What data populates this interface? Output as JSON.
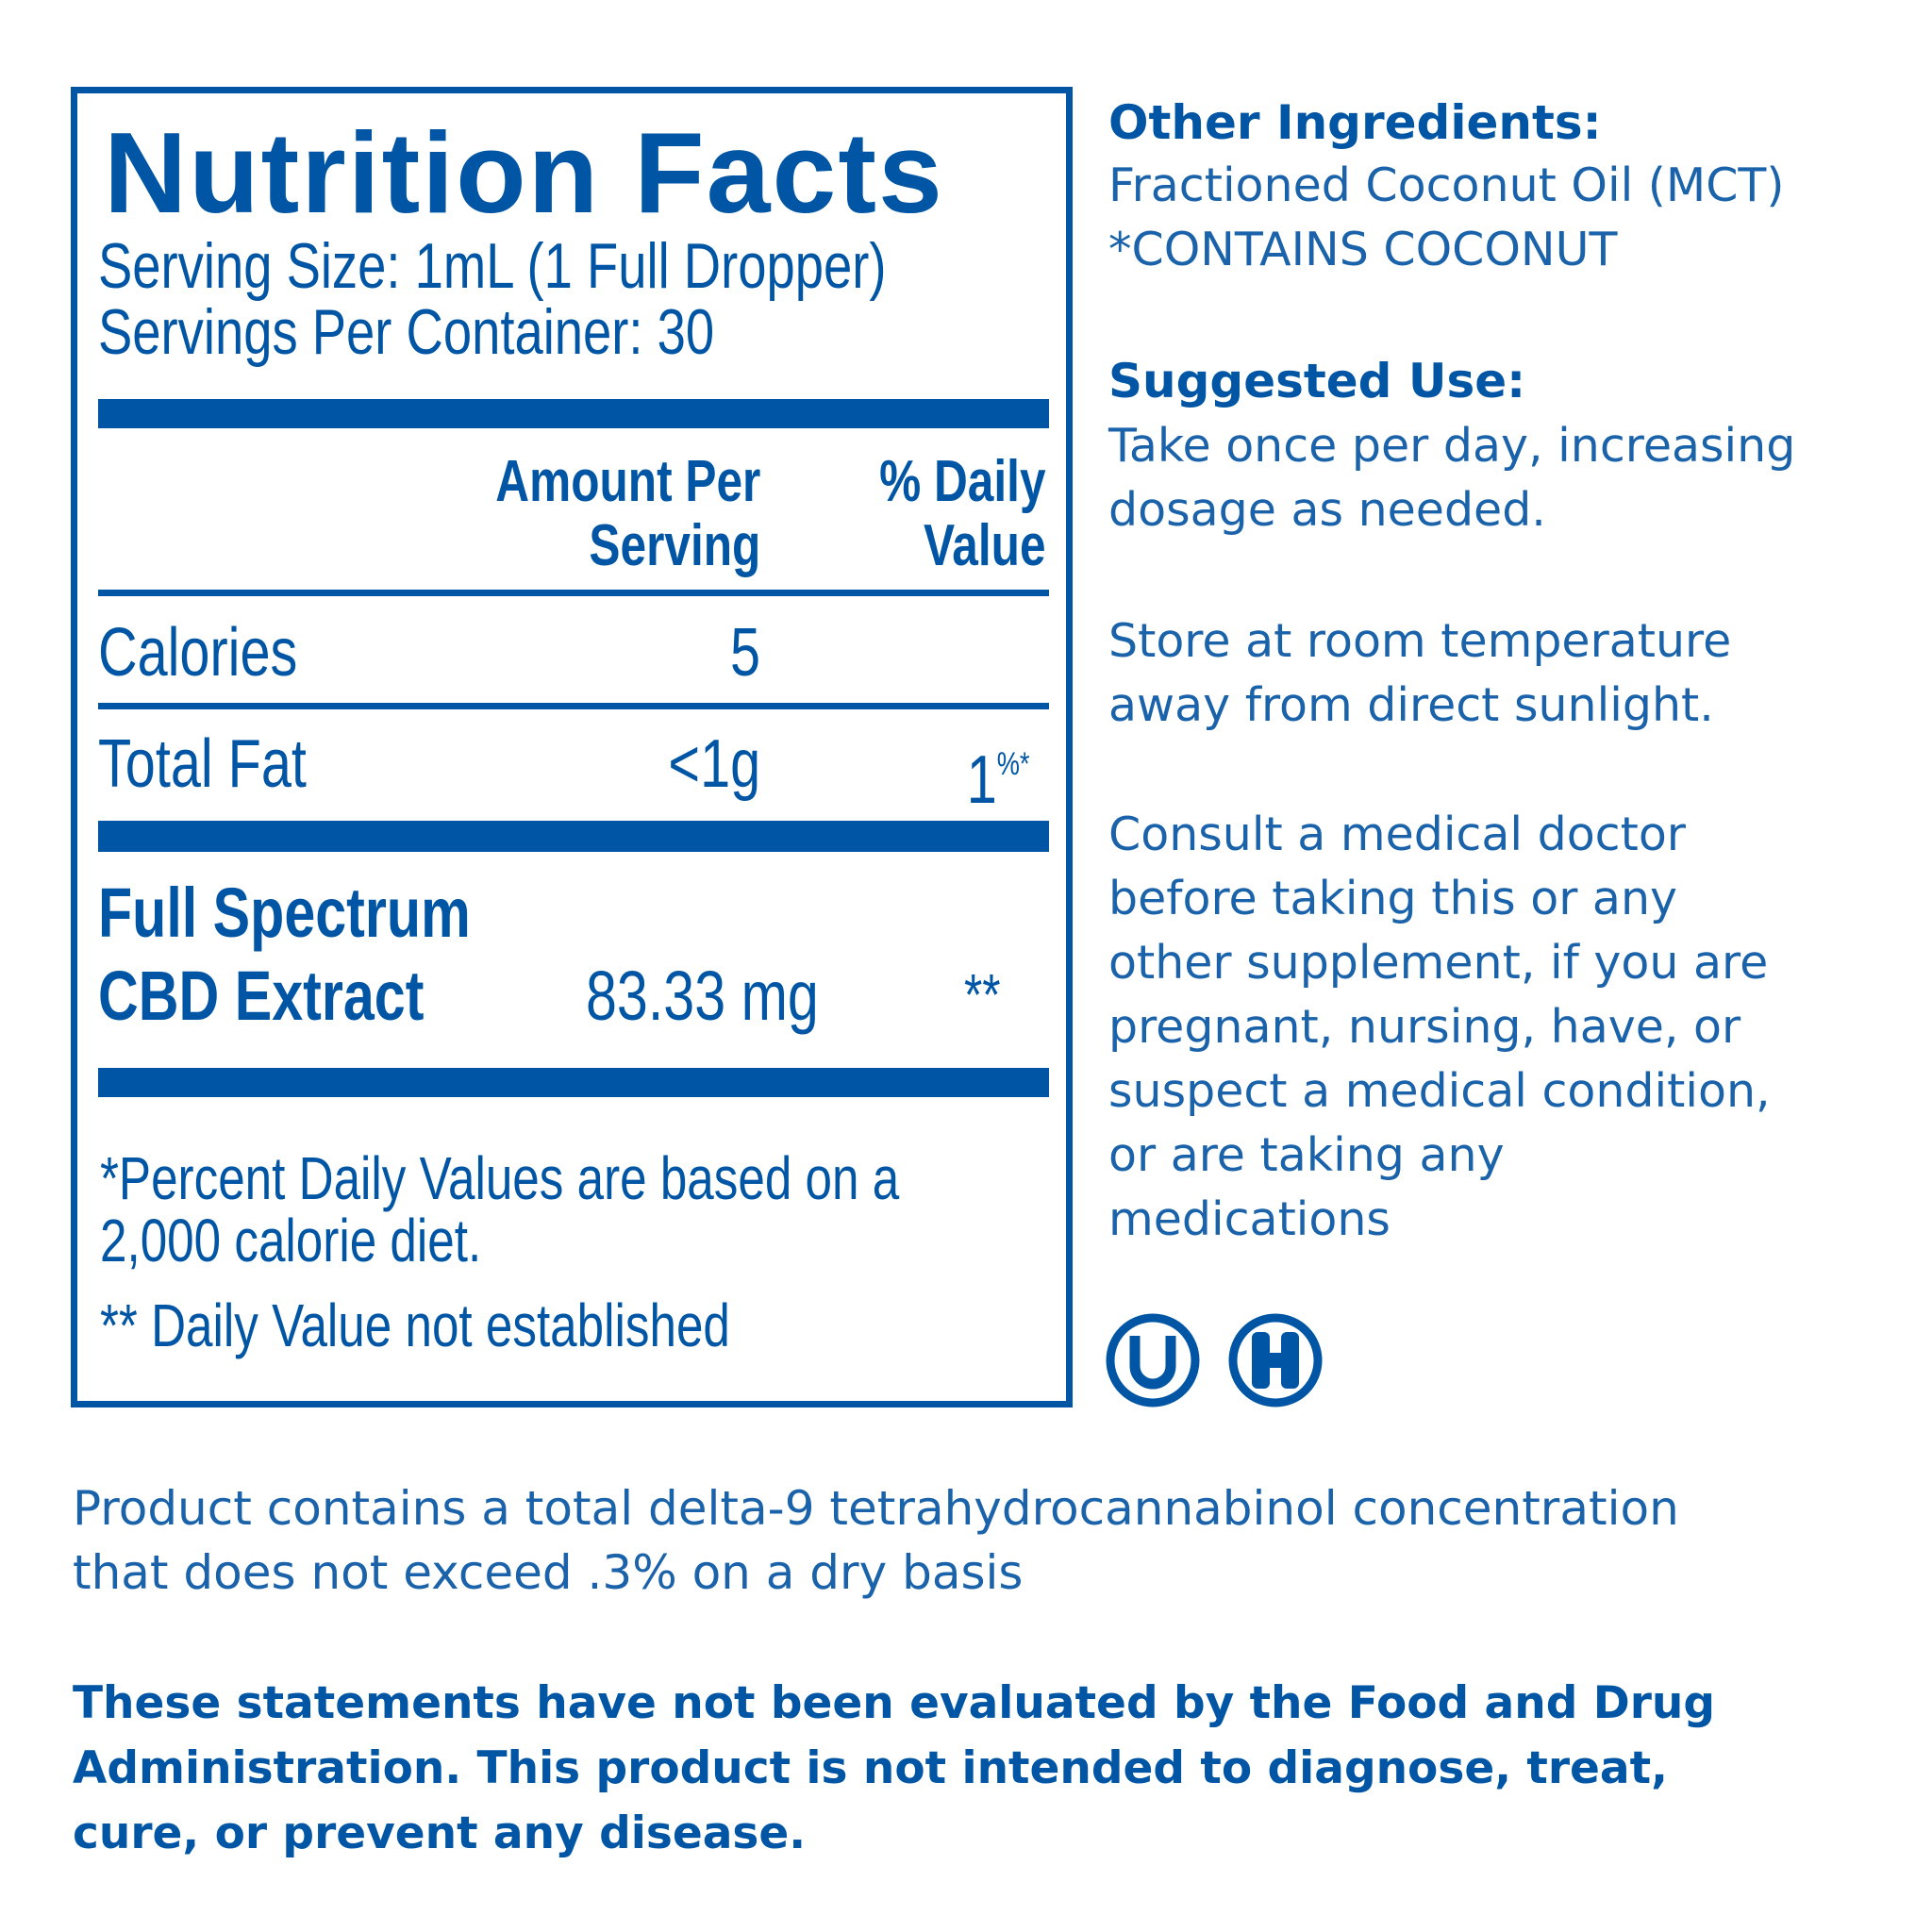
{
  "panel": {
    "title": "Nutrition Facts",
    "serving_size": "Serving Size: 1mL (1 Full Dropper)",
    "servings_per_container": "Servings Per Container: 30",
    "header": {
      "amount_line1": "Amount Per",
      "amount_line2": "Serving",
      "dv_line1": "% Daily",
      "dv_line2": "Value"
    },
    "rows": [
      {
        "label": "Calories",
        "amount": "5",
        "dv": ""
      },
      {
        "label": "Total Fat",
        "amount": "<1g",
        "dv": "1",
        "dv_sup": "%*"
      }
    ],
    "cbd": {
      "label_line1": "Full Spectrum",
      "label_line2": "CBD Extract",
      "amount": "83.33 mg",
      "dv": "**"
    },
    "footnote_line1": "*Percent Daily Values are based on a",
    "footnote_line2": "2,000 calorie diet.",
    "footnote2": "** Daily Value not established"
  },
  "side": {
    "other_ingredients_title": "Other Ingredients:",
    "other_ingredients": [
      "Fractioned Coconut Oil (MCT)",
      "*CONTAINS COCONUT"
    ],
    "suggested_use_title": "Suggested Use:",
    "suggested_use": [
      "Take once per day, increasing",
      "dosage as needed."
    ],
    "storage": [
      "Store at room temperature",
      "away from direct sunlight."
    ],
    "warning": [
      "Consult a medical doctor",
      "before taking this or any",
      "other supplement, if you are",
      "pregnant, nursing, have, or",
      "suspect a medical condition,",
      "or are taking any",
      "medications"
    ],
    "icons": [
      "kosher-u-icon",
      "halal-h-icon"
    ],
    "icon_letters": [
      "U",
      "H"
    ]
  },
  "thc_statement": [
    "Product contains a total delta-9 tetrahydrocannabinol concentration",
    "that does not exceed .3% on a dry basis"
  ],
  "fda_statement": [
    "These statements have not been evaluated by the Food and Drug",
    "Administration. This product is not intended to diagnose, treat,",
    "cure, or prevent any disease."
  ],
  "colors": {
    "brand_blue": "#0056a4"
  }
}
